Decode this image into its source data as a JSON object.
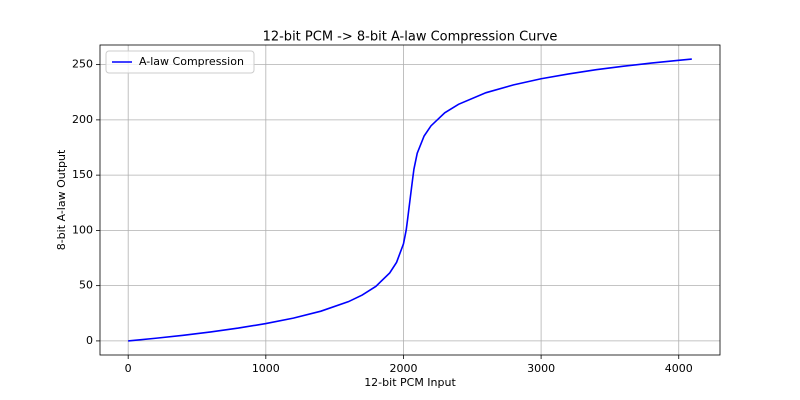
{
  "chart_data": {
    "type": "line",
    "title": "12-bit PCM -> 8-bit A-law Compression Curve",
    "xlabel": "12-bit PCM Input",
    "ylabel": "8-bit A-law Output",
    "x": [
      0,
      200,
      400,
      600,
      800,
      1000,
      1200,
      1400,
      1600,
      1700,
      1800,
      1900,
      1950,
      2000,
      2020,
      2030,
      2048,
      2066,
      2076,
      2100,
      2150,
      2200,
      2300,
      2400,
      2600,
      2800,
      3000,
      3200,
      3400,
      3600,
      3800,
      4000,
      4095
    ],
    "series": [
      {
        "name": "A-law Compression",
        "color": "#0000ff",
        "values": [
          0,
          2.4,
          5.1,
          8.1,
          11.6,
          15.7,
          20.6,
          26.9,
          35.5,
          41.5,
          49.4,
          61.5,
          71.1,
          87.8,
          100.4,
          110.0,
          128,
          145.9,
          155.4,
          169.8,
          185.4,
          194.6,
          206.4,
          214.1,
          224.6,
          231.7,
          237.2,
          241.6,
          245.4,
          248.6,
          251.4,
          253.9,
          255.0
        ]
      }
    ],
    "xlim": [
      -204.75,
      4299.75
    ],
    "ylim": [
      -12.75,
      267.75
    ],
    "xticks": [
      0,
      1000,
      2000,
      3000,
      4000
    ],
    "yticks": [
      0,
      50,
      100,
      150,
      200,
      250
    ],
    "grid": true,
    "legend": "upper left"
  }
}
